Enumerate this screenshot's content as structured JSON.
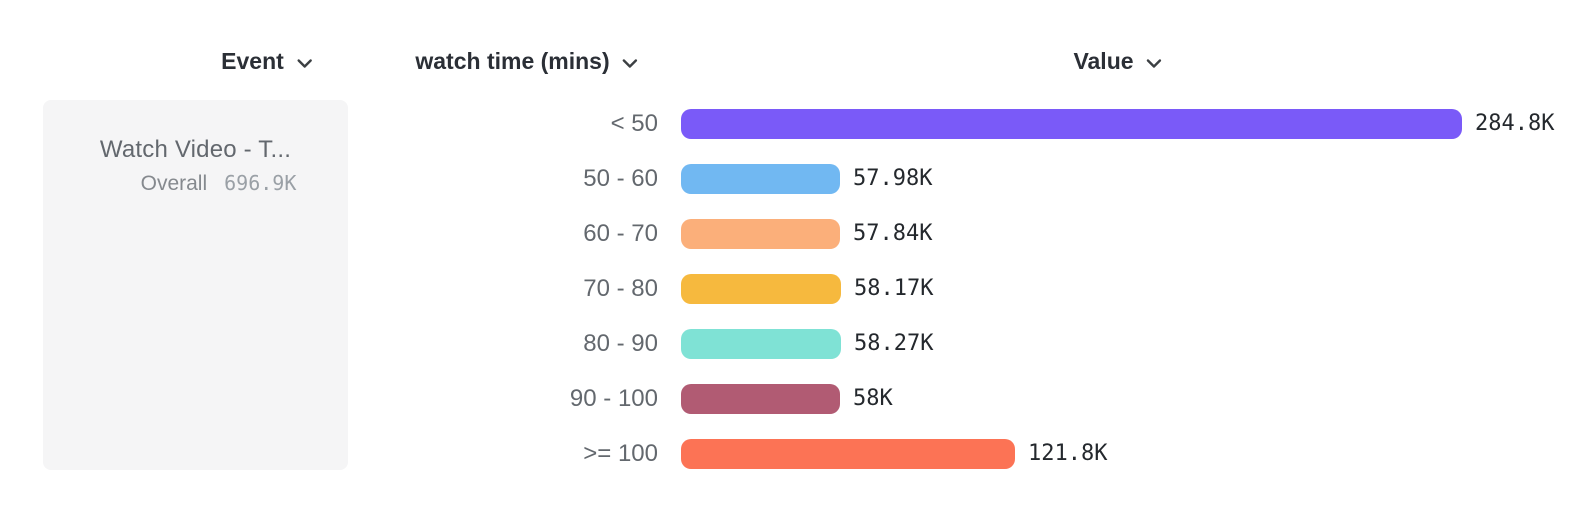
{
  "header": {
    "columns": [
      {
        "label": "Event"
      },
      {
        "label": "watch time (mins)"
      },
      {
        "label": "Value"
      }
    ]
  },
  "event_card": {
    "name": "Watch Video - T...",
    "overall_label": "Overall",
    "overall_value": "696.9K"
  },
  "chart_data": {
    "type": "bar",
    "orientation": "horizontal",
    "title": "",
    "xlabel": "Value",
    "ylabel": "watch time (mins)",
    "categories": [
      "< 50",
      "50 - 60",
      "60 - 70",
      "70 - 80",
      "80 - 90",
      "90 - 100",
      ">= 100"
    ],
    "values": [
      284800,
      57980,
      57840,
      58170,
      58270,
      58000,
      121800
    ],
    "value_labels": [
      "284.8K",
      "57.98K",
      "57.84K",
      "58.17K",
      "58.27K",
      "58K",
      "121.8K"
    ],
    "bar_colors": [
      "#7a5af8",
      "#71b8f2",
      "#fbaf7a",
      "#f6b93e",
      "#7fe2d5",
      "#b15b73",
      "#fc7355"
    ],
    "xlim": [
      0,
      284800
    ],
    "grid": false,
    "legend": "none"
  },
  "colors": {
    "background": "#ffffff",
    "card_background": "#f5f5f6",
    "header_text": "#2b2f36",
    "category_text": "#63686e",
    "value_text": "#24282d",
    "event_name_text": "#63686e",
    "overall_label_text": "#85898e",
    "overall_value_text": "#9aa0a6",
    "chevron": "#3c4043"
  }
}
